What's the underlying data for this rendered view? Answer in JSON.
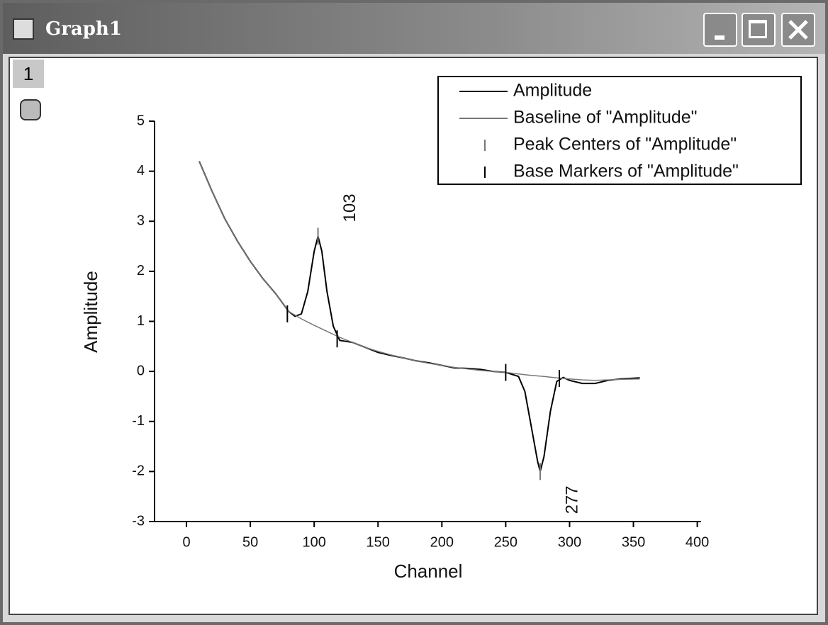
{
  "window_title": "Graph1",
  "layer": "1",
  "chart_data": {
    "type": "line",
    "x_label": "Channel",
    "y_label": "Amplitude",
    "xlim": [
      -25,
      403
    ],
    "ylim": [
      -3,
      5
    ],
    "xticks": [
      0,
      50,
      100,
      150,
      200,
      250,
      300,
      350,
      400
    ],
    "yticks": [
      -3,
      -2,
      -1,
      0,
      1,
      2,
      3,
      4,
      5
    ],
    "series": [
      {
        "name": "Amplitude",
        "color": "#000000",
        "style": "line",
        "x": [
          10,
          20,
          30,
          40,
          50,
          60,
          70,
          80,
          85,
          90,
          95,
          100,
          103,
          106,
          110,
          115,
          120,
          130,
          140,
          150,
          160,
          170,
          180,
          190,
          200,
          210,
          220,
          230,
          240,
          250,
          260,
          265,
          270,
          275,
          277,
          280,
          285,
          290,
          295,
          300,
          310,
          320,
          330,
          340,
          355
        ],
        "values": [
          4.2,
          3.6,
          3.05,
          2.6,
          2.2,
          1.85,
          1.55,
          1.2,
          1.1,
          1.15,
          1.6,
          2.4,
          2.7,
          2.4,
          1.6,
          0.9,
          0.62,
          0.58,
          0.48,
          0.38,
          0.32,
          0.27,
          0.21,
          0.17,
          0.12,
          0.07,
          0.06,
          0.04,
          0.0,
          -0.02,
          -0.1,
          -0.4,
          -1.1,
          -1.8,
          -2.0,
          -1.7,
          -0.8,
          -0.2,
          -0.12,
          -0.18,
          -0.24,
          -0.24,
          -0.18,
          -0.15,
          -0.13
        ]
      },
      {
        "name": "Baseline of \"Amplitude\"",
        "color": "#777777",
        "style": "line",
        "x": [
          10,
          20,
          30,
          40,
          50,
          60,
          70,
          80,
          90,
          100,
          110,
          120,
          130,
          140,
          150,
          160,
          170,
          180,
          190,
          200,
          210,
          220,
          230,
          240,
          250,
          260,
          270,
          280,
          290,
          300,
          310,
          320,
          330,
          340,
          355
        ],
        "values": [
          4.2,
          3.6,
          3.05,
          2.6,
          2.2,
          1.85,
          1.55,
          1.2,
          1.05,
          0.92,
          0.8,
          0.68,
          0.58,
          0.48,
          0.4,
          0.33,
          0.27,
          0.21,
          0.16,
          0.12,
          0.08,
          0.05,
          0.02,
          0.0,
          -0.02,
          -0.05,
          -0.08,
          -0.1,
          -0.13,
          -0.15,
          -0.17,
          -0.18,
          -0.17,
          -0.16,
          -0.15
        ]
      },
      {
        "name": "Peak Centers of \"Amplitude\"",
        "color": "#777777",
        "style": "marker",
        "x": [
          103,
          277
        ],
        "values": [
          2.7,
          -2.0
        ]
      },
      {
        "name": "Base Markers of \"Amplitude\"",
        "color": "#000000",
        "style": "marker",
        "x": [
          79,
          118,
          250,
          292
        ],
        "values": [
          1.15,
          0.65,
          -0.02,
          -0.14
        ]
      }
    ]
  }
}
